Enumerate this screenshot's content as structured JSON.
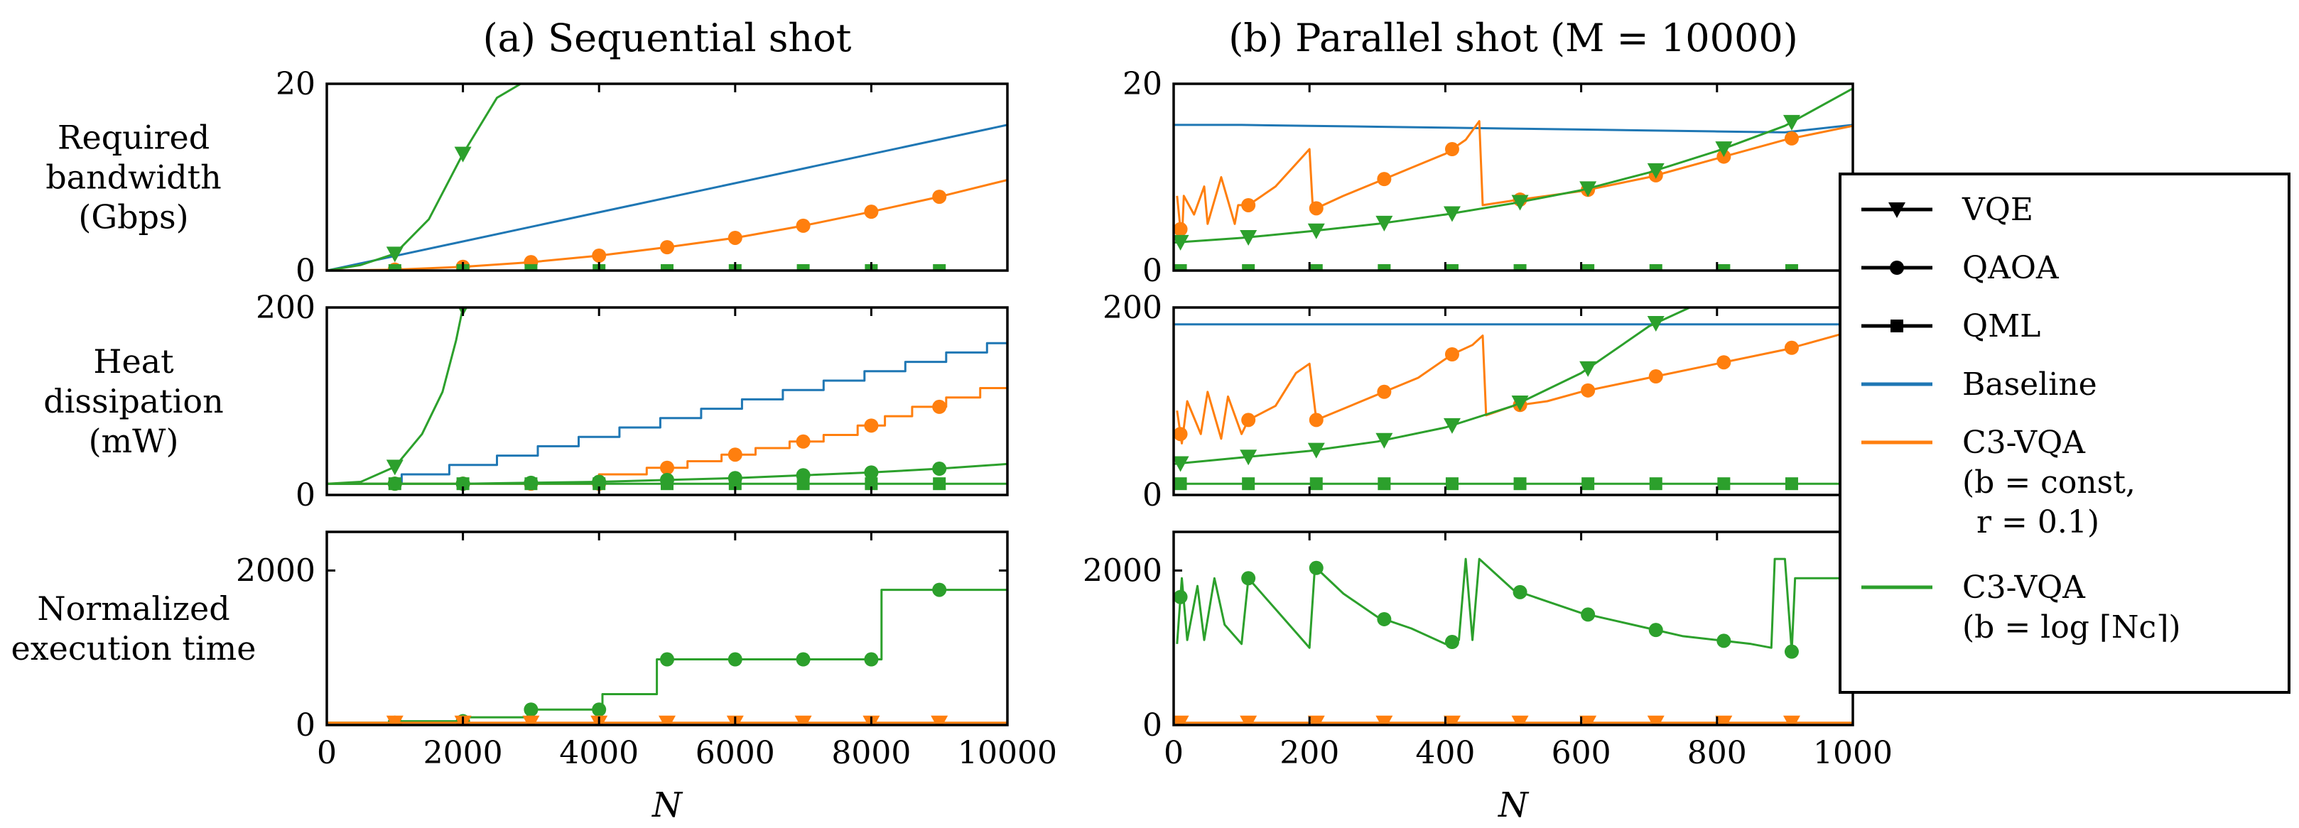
{
  "colors": {
    "baseline": "#1f77b4",
    "c3_const": "#ff7f0e",
    "c3_log": "#2ca02c",
    "axis": "#000000"
  },
  "legend": {
    "markers": [
      {
        "label": "VQE",
        "marker": "triangle-down"
      },
      {
        "label": "QAOA",
        "marker": "circle"
      },
      {
        "label": "QML",
        "marker": "square"
      }
    ],
    "lines": [
      {
        "lines": [
          "Baseline"
        ],
        "color": "#1f77b4"
      },
      {
        "lines": [
          "C3-VQA",
          "(b = const,",
          "r = 0.1)"
        ],
        "color": "#ff7f0e"
      },
      {
        "lines": [
          "C3-VQA",
          "(b = log ⌈Nᴄ⌉)"
        ],
        "color": "#2ca02c"
      }
    ],
    "placement": "right"
  },
  "chart_data": [
    {
      "type": "line",
      "panel": "a-bandwidth",
      "title": "(a) Sequential shot",
      "ylabel": [
        "Required",
        "bandwidth",
        "(Gbps)"
      ],
      "xlabel": "",
      "xlim": [
        0,
        10000
      ],
      "ylim": [
        0,
        20
      ],
      "yticks": [
        0,
        20
      ],
      "xticks": [
        0,
        2000,
        4000,
        6000,
        8000,
        10000
      ],
      "show_xtick_labels": false,
      "series": [
        {
          "color": "#1f77b4",
          "marker": "none",
          "step": false,
          "x": [
            0,
            10000
          ],
          "y": [
            0,
            15.6
          ]
        },
        {
          "color": "#2ca02c",
          "marker": "triangle-down",
          "step": false,
          "x": [
            0,
            500,
            1000,
            1500,
            2000,
            2500,
            2850
          ],
          "y": [
            0,
            0.6,
            1.8,
            5.5,
            12.5,
            18.5,
            20
          ]
        },
        {
          "color": "#ff7f0e",
          "marker": "circle",
          "step": false,
          "x": [
            0,
            1000,
            2000,
            3000,
            4000,
            5000,
            6000,
            7000,
            8000,
            9000,
            10000
          ],
          "y": [
            0,
            0.1,
            0.4,
            0.9,
            1.6,
            2.5,
            3.5,
            4.8,
            6.3,
            7.9,
            9.7
          ]
        },
        {
          "color": "#2ca02c",
          "marker": "square",
          "step": false,
          "x": [
            0,
            1000,
            2000,
            3000,
            4000,
            5000,
            6000,
            7000,
            8000,
            9000,
            10000
          ],
          "y": [
            0,
            0,
            0,
            0,
            0,
            0,
            0,
            0,
            0,
            0,
            0
          ]
        }
      ],
      "marker_x": [
        1000,
        2000,
        3000,
        4000,
        5000,
        6000,
        7000,
        8000,
        9000
      ]
    },
    {
      "type": "line",
      "panel": "a-heat",
      "ylabel": [
        "Heat",
        "dissipation",
        "(mW)"
      ],
      "xlabel": "",
      "xlim": [
        0,
        10000
      ],
      "ylim": [
        0,
        200
      ],
      "yticks": [
        0,
        200
      ],
      "xticks": [
        0,
        2000,
        4000,
        6000,
        8000,
        10000
      ],
      "show_xtick_labels": false,
      "series": [
        {
          "color": "#1f77b4",
          "marker": "none",
          "step": true,
          "x": [
            0,
            600,
            1100,
            1800,
            2500,
            3100,
            3700,
            4300,
            4900,
            5500,
            6100,
            6700,
            7300,
            7900,
            8500,
            9100,
            9700,
            10000
          ],
          "y": [
            12,
            12,
            22,
            32,
            42,
            52,
            62,
            72,
            82,
            92,
            102,
            112,
            122,
            132,
            142,
            152,
            162,
            172
          ]
        },
        {
          "color": "#2ca02c",
          "marker": "triangle-down",
          "step": false,
          "x": [
            0,
            500,
            1000,
            1400,
            1700,
            1900,
            2000
          ],
          "y": [
            12,
            14,
            30,
            65,
            110,
            165,
            200
          ]
        },
        {
          "color": "#ff7f0e",
          "marker": "circle",
          "step": true,
          "x": [
            0,
            3200,
            4000,
            4700,
            5300,
            5800,
            6300,
            6800,
            7300,
            7800,
            8200,
            8600,
            9100,
            9600,
            10000
          ],
          "y": [
            12,
            12,
            22,
            29,
            36,
            43,
            50,
            57,
            64,
            74,
            84,
            94,
            104,
            114,
            128
          ]
        },
        {
          "color": "#2ca02c",
          "marker": "circle",
          "step": false,
          "x": [
            0,
            2000,
            3000,
            4000,
            5000,
            6000,
            7000,
            8000,
            9000,
            10000
          ],
          "y": [
            12,
            12,
            13,
            14,
            16,
            18,
            21,
            24,
            28,
            33
          ]
        },
        {
          "color": "#2ca02c",
          "marker": "square",
          "step": false,
          "x": [
            0,
            10000
          ],
          "y": [
            12,
            12
          ]
        }
      ],
      "marker_x": [
        1000,
        2000,
        3000,
        4000,
        5000,
        6000,
        7000,
        8000,
        9000
      ]
    },
    {
      "type": "line",
      "panel": "a-time",
      "ylabel": [
        "Normalized",
        "execution time"
      ],
      "xlabel": "N",
      "xlim": [
        0,
        10000
      ],
      "ylim": [
        0,
        2500
      ],
      "yticks": [
        0,
        2000
      ],
      "xticks": [
        0,
        2000,
        4000,
        6000,
        8000,
        10000
      ],
      "show_xtick_labels": true,
      "series": [
        {
          "color": "#2ca02c",
          "marker": "circle",
          "step": true,
          "x": [
            0,
            1000,
            2000,
            2950,
            4050,
            4850,
            5800,
            8150,
            10000
          ],
          "y": [
            30,
            50,
            100,
            200,
            400,
            850,
            850,
            1750,
            1750
          ]
        },
        {
          "color": "#ff7f0e",
          "marker": "triangle-down",
          "step": false,
          "x": [
            0,
            10000
          ],
          "y": [
            30,
            30
          ]
        }
      ],
      "marker_x": [
        1000,
        2000,
        3000,
        4000,
        5000,
        6000,
        7000,
        8000,
        9000
      ]
    },
    {
      "type": "line",
      "panel": "b-bandwidth",
      "title": "(b) Parallel shot (M = 10000)",
      "ylabel": "",
      "xlabel": "",
      "xlim": [
        0,
        1000
      ],
      "ylim": [
        0,
        20
      ],
      "yticks": [
        0,
        20
      ],
      "xticks": [
        0,
        200,
        400,
        600,
        800,
        1000
      ],
      "show_xtick_labels": false,
      "series": [
        {
          "color": "#1f77b4",
          "marker": "none",
          "step": false,
          "x": [
            0,
            100,
            200,
            300,
            400,
            500,
            600,
            700,
            800,
            900,
            1000
          ],
          "y": [
            15.6,
            15.6,
            15.5,
            15.4,
            15.3,
            15.2,
            15.1,
            15.0,
            14.9,
            14.8,
            15.6
          ]
        },
        {
          "color": "#ff7f0e",
          "marker": "circle",
          "step": false,
          "x": [
            5,
            12,
            15,
            30,
            45,
            50,
            70,
            90,
            95,
            110,
            150,
            200,
            205,
            250,
            300,
            350,
            400,
            430,
            450,
            455,
            500,
            550,
            600,
            700,
            800,
            900,
            1000
          ],
          "y": [
            8,
            3,
            8,
            6,
            9,
            5,
            10,
            5,
            7,
            7,
            9,
            13,
            6.5,
            8,
            9.5,
            11,
            12.5,
            14,
            16,
            7,
            7.5,
            8,
            8.5,
            10,
            12,
            14,
            15.5
          ]
        },
        {
          "color": "#2ca02c",
          "marker": "triangle-down",
          "step": false,
          "x": [
            0,
            100,
            200,
            300,
            400,
            500,
            600,
            700,
            800,
            900,
            1000
          ],
          "y": [
            3,
            3.5,
            4.2,
            5,
            6,
            7.2,
            8.6,
            10.5,
            12.8,
            15.5,
            19.5
          ]
        },
        {
          "color": "#2ca02c",
          "marker": "square",
          "step": false,
          "x": [
            0,
            1000
          ],
          "y": [
            0,
            0
          ]
        }
      ],
      "marker_x": [
        10,
        110,
        210,
        310,
        410,
        510,
        610,
        710,
        810,
        910
      ]
    },
    {
      "type": "line",
      "panel": "b-heat",
      "ylabel": "",
      "xlabel": "",
      "xlim": [
        0,
        1000
      ],
      "ylim": [
        0,
        200
      ],
      "yticks": [
        0,
        200
      ],
      "xticks": [
        0,
        200,
        400,
        600,
        800,
        1000
      ],
      "show_xtick_labels": false,
      "series": [
        {
          "color": "#1f77b4",
          "marker": "none",
          "step": false,
          "x": [
            0,
            400,
            1000
          ],
          "y": [
            182,
            182,
            182
          ]
        },
        {
          "color": "#ff7f0e",
          "marker": "circle",
          "step": false,
          "x": [
            5,
            12,
            20,
            40,
            50,
            70,
            80,
            100,
            110,
            150,
            180,
            200,
            210,
            260,
            310,
            360,
            410,
            440,
            455,
            460,
            500,
            550,
            600,
            700,
            800,
            900,
            1000
          ],
          "y": [
            90,
            55,
            100,
            65,
            110,
            60,
            105,
            65,
            80,
            95,
            130,
            140,
            80,
            95,
            110,
            125,
            150,
            160,
            170,
            85,
            95,
            100,
            110,
            125,
            140,
            155,
            175
          ]
        },
        {
          "color": "#2ca02c",
          "marker": "triangle-down",
          "step": false,
          "x": [
            0,
            100,
            200,
            300,
            400,
            500,
            600,
            700,
            760
          ],
          "y": [
            33,
            40,
            47,
            57,
            72,
            95,
            130,
            180,
            200
          ]
        },
        {
          "color": "#2ca02c",
          "marker": "square",
          "step": false,
          "x": [
            0,
            1000
          ],
          "y": [
            12,
            12
          ]
        }
      ],
      "marker_x": [
        10,
        110,
        210,
        310,
        410,
        510,
        610,
        710,
        810,
        910
      ]
    },
    {
      "type": "line",
      "panel": "b-time",
      "ylabel": "",
      "xlabel": "N",
      "xlim": [
        0,
        1000
      ],
      "ylim": [
        0,
        2500
      ],
      "yticks": [
        0,
        2000
      ],
      "xticks": [
        0,
        200,
        400,
        600,
        800,
        1000
      ],
      "show_xtick_labels": true,
      "series": [
        {
          "color": "#2ca02c",
          "marker": "circle",
          "step": false,
          "x": [
            5,
            12,
            20,
            35,
            45,
            60,
            75,
            100,
            110,
            150,
            200,
            208,
            250,
            300,
            350,
            400,
            420,
            430,
            440,
            450,
            500,
            550,
            600,
            650,
            700,
            750,
            800,
            850,
            880,
            885,
            900,
            910,
            915,
            1000
          ],
          "y": [
            1050,
            1900,
            1100,
            1800,
            1100,
            1900,
            1300,
            1050,
            1900,
            1500,
            1000,
            2050,
            1700,
            1400,
            1250,
            1050,
            1100,
            2150,
            1100,
            2150,
            1750,
            1600,
            1450,
            1350,
            1250,
            1150,
            1100,
            1050,
            1000,
            2150,
            2150,
            950,
            1900,
            1900
          ]
        },
        {
          "color": "#ff7f0e",
          "marker": "triangle-down",
          "step": false,
          "x": [
            0,
            1000
          ],
          "y": [
            30,
            30
          ]
        }
      ],
      "marker_x": [
        10,
        110,
        210,
        310,
        410,
        510,
        610,
        710,
        810,
        910
      ]
    }
  ]
}
